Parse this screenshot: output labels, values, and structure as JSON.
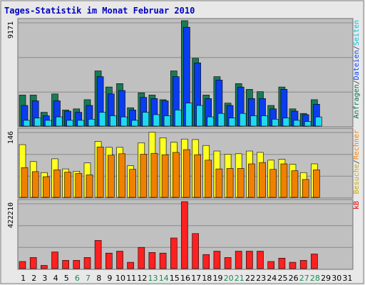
{
  "chart_data": {
    "type": "bar",
    "title": "Tages-Statistik im Monat Februar 2010",
    "categories": [
      "1",
      "2",
      "3",
      "4",
      "5",
      "6",
      "7",
      "8",
      "9",
      "10",
      "11",
      "12",
      "13",
      "14",
      "15",
      "16",
      "17",
      "18",
      "19",
      "20",
      "21",
      "22",
      "23",
      "24",
      "25",
      "26",
      "27",
      "28",
      "29",
      "30",
      "31"
    ],
    "weekend_days": [
      "6",
      "7",
      "13",
      "14",
      "20",
      "21",
      "27",
      "28"
    ],
    "panels": [
      {
        "id": "top",
        "max_label": "9171",
        "ymax": 9171,
        "right_labels": [
          {
            "text": "Anfragen",
            "color": "#006c4b"
          },
          {
            "text": "/",
            "color": "#333333"
          },
          {
            "text": "Dateien",
            "color": "#0040ff"
          },
          {
            "text": "/",
            "color": "#333333"
          },
          {
            "text": "Seiten",
            "color": "#00c0e0"
          }
        ],
        "series": [
          {
            "name": "Anfragen",
            "color": "#1a7a55",
            "values": [
              2700,
              2700,
              1200,
              2800,
              1400,
              1500,
              2300,
              4800,
              3400,
              3700,
              1600,
              2900,
              2700,
              2300,
              4800,
              9171,
              5900,
              2700,
              4300,
              2000,
              3700,
              3200,
              3000,
              1800,
              3400,
              1500,
              1100,
              2300,
              0,
              0,
              0
            ]
          },
          {
            "name": "Dateien",
            "color": "#0a3cf0",
            "values": [
              1800,
              2200,
              900,
              2200,
              1300,
              1200,
              1800,
              4300,
              2800,
              3100,
              1400,
              2500,
              2400,
              2200,
              4300,
              8600,
              5500,
              2400,
              4000,
              1800,
              3400,
              2400,
              2400,
              1500,
              3200,
              1300,
              1000,
              1900,
              0,
              0,
              0
            ]
          },
          {
            "name": "Seiten",
            "color": "#20d8f0",
            "values": [
              500,
              700,
              500,
              800,
              500,
              500,
              600,
              1200,
              900,
              800,
              500,
              1200,
              1000,
              900,
              1400,
              2000,
              1800,
              800,
              1100,
              700,
              1100,
              900,
              900,
              600,
              700,
              500,
              400,
              800,
              0,
              0,
              0
            ]
          }
        ]
      },
      {
        "id": "middle",
        "max_label": "146",
        "ymax": 146,
        "right_labels": [
          {
            "text": "Besuche",
            "color": "#c8a800"
          },
          {
            "text": "/",
            "color": "#333333"
          },
          {
            "text": "Rechner",
            "color": "#f08000"
          }
        ],
        "series": [
          {
            "name": "Besuche",
            "color": "#ffff20",
            "values": [
              115,
              78,
              54,
              84,
              62,
              57,
              75,
              122,
              109,
              109,
              69,
              119,
              142,
              130,
              120,
              127,
              126,
              113,
              101,
              94,
              95,
              101,
              98,
              81,
              83,
              72,
              54,
              73,
              0,
              0,
              0
            ]
          },
          {
            "name": "Rechner",
            "color": "#f08000",
            "values": [
              65,
              56,
              45,
              60,
              55,
              52,
              49,
              110,
              92,
              95,
              61,
              94,
              96,
              93,
              98,
              104,
              93,
              81,
              62,
              63,
              63,
              73,
              76,
              61,
              73,
              58,
              39,
              60,
              0,
              0,
              0
            ]
          }
        ]
      },
      {
        "id": "bottom",
        "max_label": "422210",
        "ymax": 422210,
        "right_labels": [
          {
            "text": "kB",
            "color": "#e00000"
          }
        ],
        "series": [
          {
            "name": "kB",
            "color": "#ff2020",
            "values": [
              45000,
              70000,
              20000,
              105000,
              52000,
              52000,
              70000,
              178000,
              98000,
              110000,
              40000,
              134000,
              102000,
              98000,
              193000,
              422210,
              221000,
              89000,
              110000,
              70000,
              110000,
              110000,
              110000,
              45000,
              66000,
              40000,
              52000,
              92000,
              0,
              0,
              0
            ]
          }
        ]
      }
    ]
  }
}
